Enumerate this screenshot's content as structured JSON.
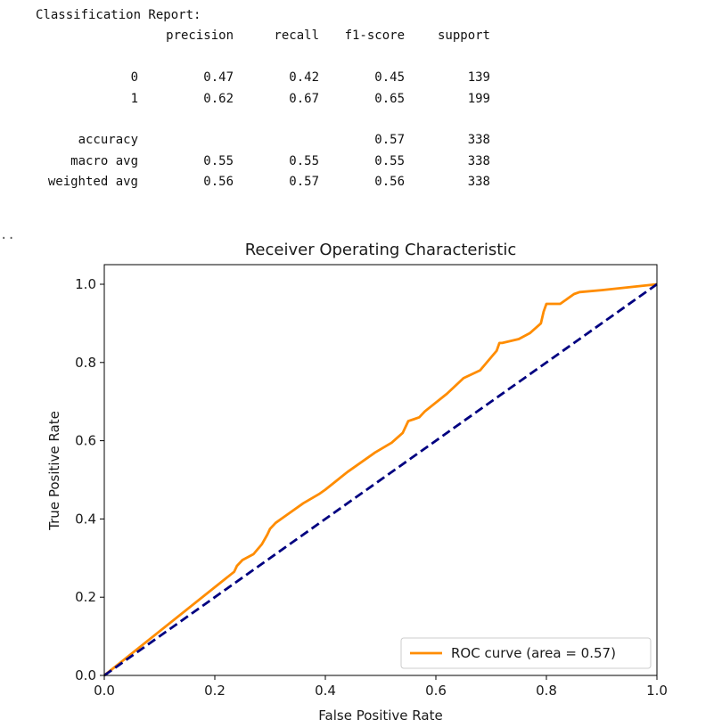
{
  "report": {
    "title": "Classification Report:",
    "headers": [
      "",
      "precision",
      "recall",
      "f1-score",
      "support"
    ],
    "rows": [
      [
        "0",
        "0.47",
        "0.42",
        "0.45",
        "139"
      ],
      [
        "1",
        "0.62",
        "0.67",
        "0.65",
        "199"
      ],
      [],
      [
        "accuracy",
        "",
        "",
        "0.57",
        "338"
      ],
      [
        "macro avg",
        "0.55",
        "0.55",
        "0.55",
        "338"
      ],
      [
        "weighted avg",
        "0.56",
        "0.57",
        "0.56",
        "338"
      ]
    ]
  },
  "ellipsis": "..",
  "chart_data": {
    "type": "line",
    "title": "Receiver Operating Characteristic",
    "xlabel": "False Positive Rate",
    "ylabel": "True Positive Rate",
    "xlim": [
      0.0,
      1.0
    ],
    "ylim": [
      0.0,
      1.05
    ],
    "xticks": [
      "0.0",
      "0.2",
      "0.4",
      "0.6",
      "0.8",
      "1.0"
    ],
    "yticks": [
      "0.0",
      "0.2",
      "0.4",
      "0.6",
      "0.8",
      "1.0"
    ],
    "grid": false,
    "legend_position": "lower-right",
    "series": [
      {
        "name": "ROC curve (area = 0.57)",
        "color": "#ff8c00",
        "style": "solid",
        "x": [
          0.0,
          0.235,
          0.24,
          0.25,
          0.27,
          0.285,
          0.295,
          0.3,
          0.31,
          0.33,
          0.36,
          0.39,
          0.4,
          0.44,
          0.49,
          0.52,
          0.54,
          0.55,
          0.56,
          0.57,
          0.58,
          0.62,
          0.65,
          0.68,
          0.71,
          0.715,
          0.72,
          0.75,
          0.77,
          0.79,
          0.795,
          0.8,
          0.81,
          0.825,
          0.85,
          0.86,
          0.9,
          1.0
        ],
        "y": [
          0.0,
          0.265,
          0.28,
          0.295,
          0.31,
          0.335,
          0.36,
          0.375,
          0.39,
          0.41,
          0.44,
          0.465,
          0.475,
          0.52,
          0.57,
          0.595,
          0.62,
          0.65,
          0.655,
          0.66,
          0.675,
          0.72,
          0.76,
          0.78,
          0.83,
          0.85,
          0.85,
          0.86,
          0.875,
          0.9,
          0.93,
          0.95,
          0.95,
          0.95,
          0.975,
          0.98,
          0.985,
          1.0
        ]
      },
      {
        "color": "#000080",
        "style": "dashed",
        "x": [
          0.0,
          1.0
        ],
        "y": [
          0.0,
          1.0
        ]
      }
    ]
  }
}
